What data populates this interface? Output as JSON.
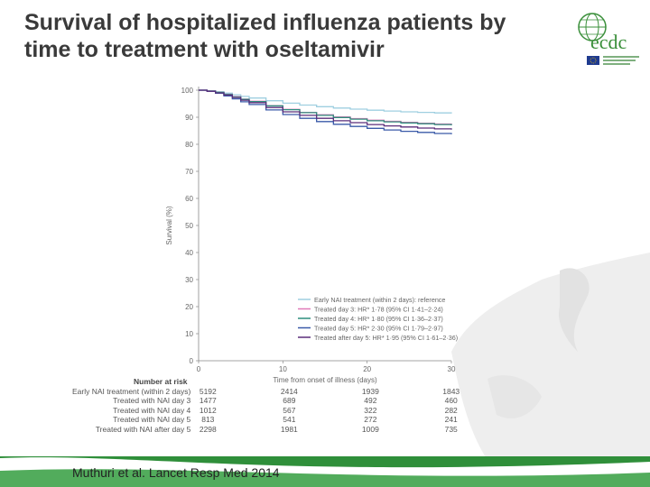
{
  "slide": {
    "title_line1": "Survival of hospitalized influenza patients by",
    "title_line2": "time to treatment with oseltamivir",
    "citation": "Muthuri et al. Lancet Resp Med 2014",
    "logo_text": "ecdc",
    "colors": {
      "title": "#3a3a3a",
      "footer_green": "#2f8f3a",
      "logo_green": "#3a8f3a",
      "logo_blue": "#1f3b8f"
    }
  },
  "chart_data": {
    "type": "line",
    "title": "",
    "xlabel": "Time from onset of illness (days)",
    "ylabel": "Survival (%)",
    "xlim": [
      0,
      30
    ],
    "ylim": [
      0,
      100
    ],
    "xticks": [
      0,
      10,
      20,
      30
    ],
    "yticks": [
      0,
      10,
      20,
      30,
      40,
      50,
      60,
      70,
      80,
      90,
      100
    ],
    "x": [
      0,
      1,
      2,
      3,
      4,
      5,
      6,
      8,
      10,
      12,
      14,
      16,
      18,
      20,
      22,
      24,
      26,
      28,
      30
    ],
    "legend_position": "bottom-right",
    "series": [
      {
        "name": "Early NAI treatment (within 2 days): reference",
        "color": "#9fcfe0",
        "values": [
          100,
          99.8,
          99.4,
          98.9,
          98.3,
          97.7,
          97.1,
          96.1,
          95.2,
          94.5,
          93.9,
          93.4,
          93.0,
          92.6,
          92.3,
          92.0,
          91.8,
          91.6,
          91.4
        ]
      },
      {
        "name": "Treated day 3: HR* 1·78 (95% CI 1·41–2·24)",
        "color": "#e07ab8",
        "values": [
          100,
          99.7,
          99.2,
          98.5,
          97.6,
          96.7,
          95.9,
          94.3,
          92.9,
          91.8,
          90.9,
          90.1,
          89.5,
          88.9,
          88.5,
          88.1,
          87.8,
          87.5,
          87.2
        ]
      },
      {
        "name": "Treated day 4: HR* 1·80 (95% CI 1·36–2·37)",
        "color": "#2e8f7e",
        "values": [
          100,
          99.7,
          99.2,
          98.4,
          97.5,
          96.6,
          95.8,
          94.2,
          92.8,
          91.7,
          90.7,
          89.9,
          89.3,
          88.7,
          88.3,
          87.9,
          87.6,
          87.3,
          87.0
        ]
      },
      {
        "name": "Treated day 5: HR* 2·30 (95% CI 1·79–2·97)",
        "color": "#3a5aa8",
        "values": [
          100,
          99.6,
          98.9,
          97.9,
          96.8,
          95.7,
          94.7,
          92.7,
          91.0,
          89.6,
          88.4,
          87.4,
          86.6,
          85.9,
          85.3,
          84.8,
          84.4,
          84.0,
          83.7
        ]
      },
      {
        "name": "Treated after day 5: HR* 1·95 (95% CI 1·61–2·36)",
        "color": "#5a2d7a",
        "values": [
          100,
          99.6,
          99.0,
          98.2,
          97.3,
          96.3,
          95.4,
          93.6,
          92.0,
          90.7,
          89.6,
          88.7,
          88.0,
          87.3,
          86.8,
          86.4,
          86.0,
          85.7,
          85.4
        ]
      }
    ],
    "risk_table": {
      "header": "Number at risk",
      "time_points": [
        0,
        10,
        20,
        30
      ],
      "rows": [
        {
          "label": "Early NAI treatment (within 2 days)",
          "counts": [
            "5192",
            "2414",
            "1939",
            "1843"
          ]
        },
        {
          "label": "Treated with NAI day 3",
          "counts": [
            "1477",
            "689",
            "492",
            "460"
          ]
        },
        {
          "label": "Treated with NAI day 4",
          "counts": [
            "1012",
            "567",
            "322",
            "282"
          ]
        },
        {
          "label": "Treated with NAI day 5",
          "counts": [
            "813",
            "541",
            "272",
            "241"
          ]
        },
        {
          "label": "Treated with NAI after day 5",
          "counts": [
            "2298",
            "1981",
            "1009",
            "735"
          ]
        }
      ]
    }
  }
}
